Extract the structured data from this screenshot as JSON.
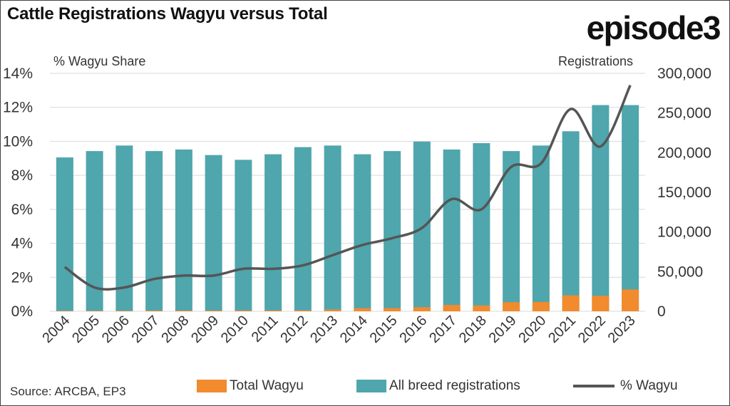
{
  "header": {
    "title": "Cattle Registrations Wagyu versus Total",
    "brand": "episode3"
  },
  "source": "Source: ARCBA, EP3",
  "colors": {
    "wagyu": "#F28A2E",
    "all_breed": "#4FA6AD",
    "line": "#555555",
    "grid": "#d9d9d9"
  },
  "chart_data": {
    "type": "bar",
    "stacked": true,
    "title": "Cattle Registrations Wagyu versus Total",
    "y_left_label": "% Wagyu Share",
    "y_right_label": "Registrations",
    "y_left_ticks": [
      "0%",
      "2%",
      "4%",
      "6%",
      "8%",
      "10%",
      "12%",
      "14%"
    ],
    "y_left_lim": [
      0,
      14
    ],
    "y_right_ticks": [
      "0",
      "50,000",
      "100,000",
      "150,000",
      "200,000",
      "250,000",
      "300,000"
    ],
    "y_right_lim": [
      0,
      300000
    ],
    "grid": true,
    "legend_position": "bottom",
    "categories": [
      "2004",
      "2005",
      "2006",
      "2007",
      "2008",
      "2009",
      "2010",
      "2011",
      "2012",
      "2013",
      "2014",
      "2015",
      "2016",
      "2017",
      "2018",
      "2019",
      "2020",
      "2021",
      "2022",
      "2023"
    ],
    "series": [
      {
        "name": "Total Wagyu",
        "type": "bar",
        "axis": "right",
        "values": [
          600,
          600,
          700,
          800,
          900,
          900,
          1000,
          1000,
          1200,
          2200,
          3900,
          4000,
          5200,
          8000,
          7300,
          11500,
          11800,
          20000,
          19500,
          27500
        ]
      },
      {
        "name": "All breed registrations",
        "type": "bar",
        "axis": "right",
        "values": [
          194000,
          202000,
          209000,
          202000,
          204000,
          197000,
          191000,
          198000,
          207000,
          209000,
          198000,
          202000,
          214000,
          204000,
          212000,
          202000,
          209000,
          227000,
          260000,
          260000
        ]
      },
      {
        "name": "% Wagyu",
        "type": "line",
        "axis": "left",
        "values": [
          2.6,
          1.4,
          1.4,
          1.9,
          2.1,
          2.1,
          2.5,
          2.5,
          2.7,
          3.3,
          3.9,
          4.3,
          4.9,
          6.6,
          6.0,
          8.5,
          8.7,
          11.9,
          9.7,
          13.3
        ]
      }
    ]
  }
}
